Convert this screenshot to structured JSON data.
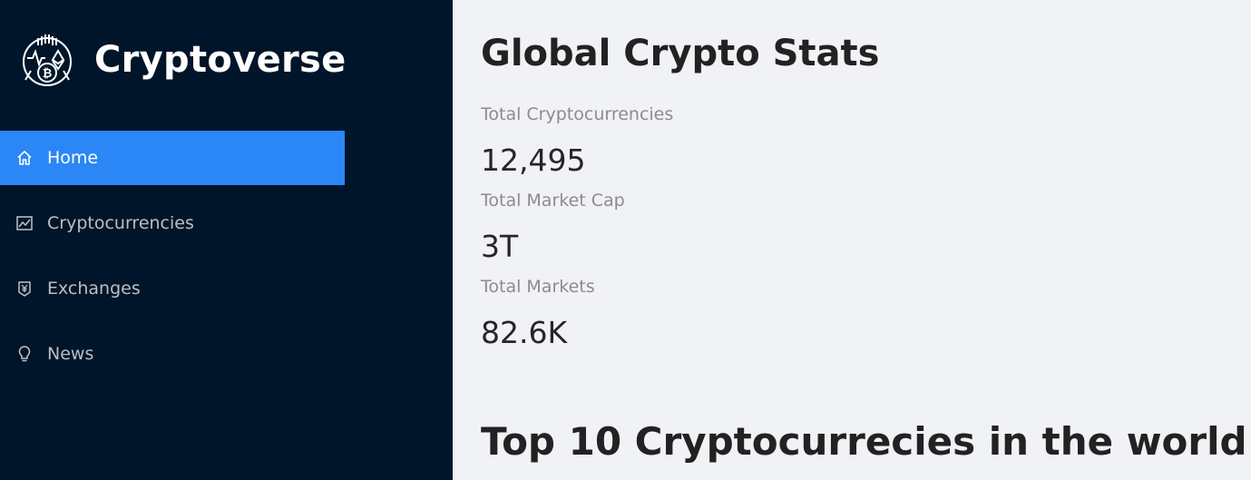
{
  "brand": {
    "name": "Cryptoverse"
  },
  "menu": {
    "items": [
      {
        "label": "Home",
        "icon": "home-icon",
        "active": true
      },
      {
        "label": "Cryptocurrencies",
        "icon": "fund-chart-icon",
        "active": false
      },
      {
        "label": "Exchanges",
        "icon": "money-collect-icon",
        "active": false
      },
      {
        "label": "News",
        "icon": "bulb-icon",
        "active": false
      }
    ]
  },
  "main": {
    "title": "Global Crypto Stats",
    "stats": [
      {
        "label": "Total Cryptocurrencies",
        "value": "12,495"
      },
      {
        "label": "Total Market Cap",
        "value": "3T"
      },
      {
        "label": "Total Markets",
        "value": "82.6K"
      }
    ],
    "top_heading": "Top 10 Cryptocurrecies in the world"
  },
  "colors": {
    "sidebar_bg": "#001529",
    "active_item": "#2a87f5",
    "main_bg": "#f0f2f5"
  }
}
